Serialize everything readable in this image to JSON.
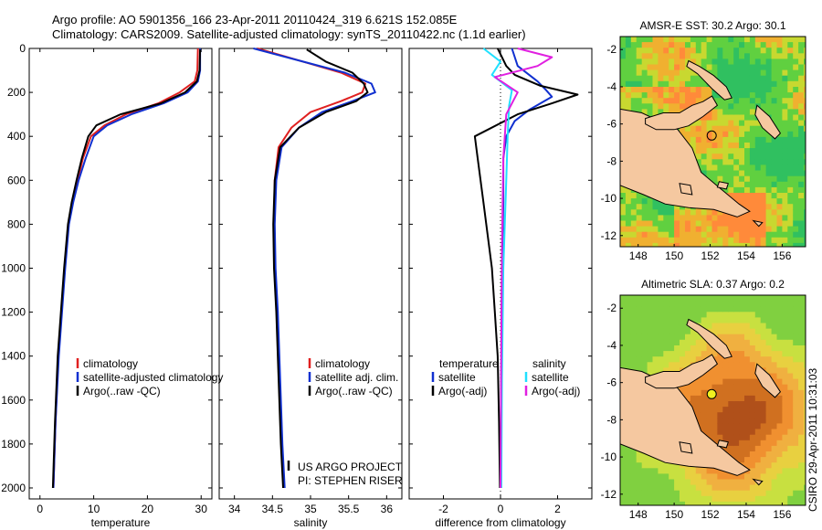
{
  "title": {
    "line1": "Argo profile: AO 5901356_166 23-Apr-2011 20110424_319 6.621S 152.085E",
    "line2": "Climatology: CARS2009. Satellite-adjusted climatology: synTS_20110422.nc (1.1d earlier)"
  },
  "credit": {
    "line1": "US ARGO PROJECT",
    "line2": "PI: STEPHEN RISER"
  },
  "timestamp": "CSIRO 29-Apr-2011 10:31:03",
  "colors": {
    "climatology": "#e02020",
    "satellite": "#1030d0",
    "argo": "#000000",
    "temp_diff": "#000000",
    "temp_sat": "#1030d0",
    "sal_sat": "#20e0ff",
    "sal_argo": "#e020e0"
  },
  "chart_data": [
    {
      "type": "line",
      "name": "temperature-profile",
      "xlabel": "temperature",
      "xlim": [
        -2,
        32
      ],
      "ylim": [
        0,
        2050
      ],
      "yreversed": true,
      "xticks": [
        0,
        10,
        20,
        30
      ],
      "yticks": [
        0,
        200,
        400,
        600,
        800,
        1000,
        1200,
        1400,
        1600,
        1800,
        2000
      ],
      "legend": [
        "climatology",
        "satellite-adjusted climatology",
        "Argo(..raw -QC)"
      ],
      "series": [
        {
          "name": "climatology",
          "color": "climatology",
          "x": [
            29.4,
            29.3,
            28.8,
            26,
            22,
            16,
            12,
            9.5,
            8,
            7,
            6,
            5.3,
            4.6,
            4,
            3.4,
            2.9,
            2.5
          ],
          "y": [
            0,
            100,
            150,
            200,
            250,
            300,
            350,
            400,
            500,
            600,
            700,
            800,
            1000,
            1200,
            1400,
            1700,
            2000
          ]
        },
        {
          "name": "satellite-adjusted climatology",
          "color": "satellite",
          "x": [
            29.8,
            29.8,
            29.4,
            27.5,
            23,
            17,
            12.5,
            10,
            8.5,
            7.2,
            6.2,
            5.4,
            4.7,
            4.1,
            3.5,
            2.9,
            2.5
          ],
          "y": [
            0,
            100,
            150,
            200,
            250,
            300,
            350,
            400,
            500,
            600,
            700,
            800,
            1000,
            1200,
            1400,
            1700,
            2000
          ]
        },
        {
          "name": "Argo(..raw -QC)",
          "color": "argo",
          "x": [
            29.8,
            29.7,
            29.2,
            27,
            22.5,
            15,
            10.5,
            9,
            7.8,
            6.8,
            5.9,
            5.2,
            4.5,
            3.9,
            3.3,
            2.8,
            2.4
          ],
          "y": [
            5,
            100,
            150,
            200,
            250,
            300,
            350,
            400,
            500,
            600,
            700,
            800,
            1000,
            1200,
            1400,
            1700,
            2000
          ]
        }
      ]
    },
    {
      "type": "line",
      "name": "salinity-profile",
      "xlabel": "salinity",
      "xlim": [
        33.8,
        36.2
      ],
      "ylim": [
        0,
        2050
      ],
      "yreversed": true,
      "xticks": [
        34,
        34.5,
        35,
        35.5,
        36
      ],
      "legend": [
        "climatology",
        "satellite adj. clim.",
        "Argo(..raw -QC)"
      ],
      "series": [
        {
          "name": "climatology",
          "color": "climatology",
          "x": [
            34.3,
            34.9,
            35.4,
            35.72,
            35.68,
            35.4,
            35.0,
            34.75,
            34.58,
            34.53,
            34.52,
            34.53,
            34.56,
            34.59,
            34.62,
            34.65
          ],
          "y": [
            0,
            60,
            110,
            160,
            200,
            240,
            290,
            360,
            450,
            600,
            800,
            1000,
            1200,
            1500,
            1800,
            2000
          ]
        },
        {
          "name": "satellite adj. clim.",
          "color": "satellite",
          "x": [
            34.25,
            34.9,
            35.45,
            35.8,
            35.85,
            35.55,
            35.15,
            34.85,
            34.62,
            34.55,
            34.53,
            34.54,
            34.57,
            34.6,
            34.63,
            34.66
          ],
          "y": [
            0,
            60,
            110,
            160,
            200,
            240,
            290,
            360,
            450,
            600,
            800,
            1000,
            1200,
            1500,
            1800,
            2000
          ]
        },
        {
          "name": "Argo(..raw -QC)",
          "color": "argo",
          "x": [
            34.95,
            35.2,
            35.55,
            35.7,
            35.75,
            35.6,
            35.2,
            34.85,
            34.6,
            34.53,
            34.51,
            34.52,
            34.55,
            34.58,
            34.61,
            34.64
          ],
          "y": [
            5,
            60,
            110,
            160,
            200,
            240,
            290,
            360,
            450,
            600,
            800,
            1000,
            1200,
            1500,
            1800,
            2000
          ]
        }
      ]
    },
    {
      "type": "line",
      "name": "difference-from-climatology",
      "xlabel": "difference from climatology",
      "xlim": [
        -3.2,
        3.2
      ],
      "ylim": [
        0,
        2050
      ],
      "yreversed": true,
      "xticks": [
        -2,
        0,
        2
      ],
      "legend_headers": [
        "temperature",
        "salinity"
      ],
      "legend": [
        "satellite",
        "Argo(-adj)",
        "satellite",
        "Argo(-adj)"
      ],
      "series": [
        {
          "name": "temperature satellite",
          "color": "temp_sat",
          "x": [
            0.4,
            0.6,
            1.3,
            1.6,
            1.8,
            1.0,
            0.5,
            0.2,
            0.1,
            0.1,
            0.05,
            0.03,
            0.02
          ],
          "y": [
            0,
            80,
            150,
            190,
            220,
            280,
            330,
            400,
            500,
            700,
            1000,
            1500,
            2000
          ]
        },
        {
          "name": "temperature Argo(-adj)",
          "color": "temp_diff",
          "x": [
            -0.1,
            0.2,
            0.5,
            1.4,
            2.7,
            1.8,
            0.6,
            -0.9,
            -0.8,
            -0.6,
            -0.3,
            -0.2,
            -0.1,
            -0.05,
            -0.02
          ],
          "y": [
            0,
            80,
            120,
            170,
            210,
            250,
            300,
            400,
            500,
            700,
            1000,
            1200,
            1400,
            1700,
            2000
          ]
        },
        {
          "name": "salinity satellite",
          "color": "sal_sat",
          "x": [
            -0.6,
            0.0,
            -0.3,
            0.4,
            0.3,
            0.25,
            0.2,
            0.1,
            0.05,
            0.03
          ],
          "y": [
            0,
            60,
            120,
            190,
            260,
            400,
            600,
            1000,
            1500,
            2000
          ]
        },
        {
          "name": "salinity Argo(-adj)",
          "color": "sal_argo",
          "x": [
            0.6,
            1.8,
            1.3,
            -0.2,
            0.6,
            0.2,
            0.1,
            0.05,
            0.02,
            0.0
          ],
          "y": [
            0,
            40,
            80,
            130,
            200,
            300,
            500,
            900,
            1500,
            2000
          ]
        }
      ]
    },
    {
      "type": "heatmap",
      "name": "amsr-sst-map",
      "title": "AMSR-E SST: 30.2 Argo: 30.1",
      "xlim": [
        147,
        157.3
      ],
      "ylim": [
        -12.6,
        -1.3
      ],
      "xticks": [
        148,
        150,
        152,
        154,
        156
      ],
      "yticks": [
        -2,
        -4,
        -6,
        -8,
        -10,
        -12
      ],
      "marker": {
        "lon": 152.085,
        "lat": -6.621
      }
    },
    {
      "type": "heatmap",
      "name": "altimetric-sla-map",
      "title": "Altimetric SLA: 0.37 Argo: 0.2",
      "xlim": [
        147,
        157.3
      ],
      "ylim": [
        -12.6,
        -1.3
      ],
      "xticks": [
        148,
        150,
        152,
        154,
        156
      ],
      "yticks": [
        -2,
        -4,
        -6,
        -8,
        -10,
        -12
      ],
      "marker": {
        "lon": 152.085,
        "lat": -6.621
      }
    }
  ]
}
